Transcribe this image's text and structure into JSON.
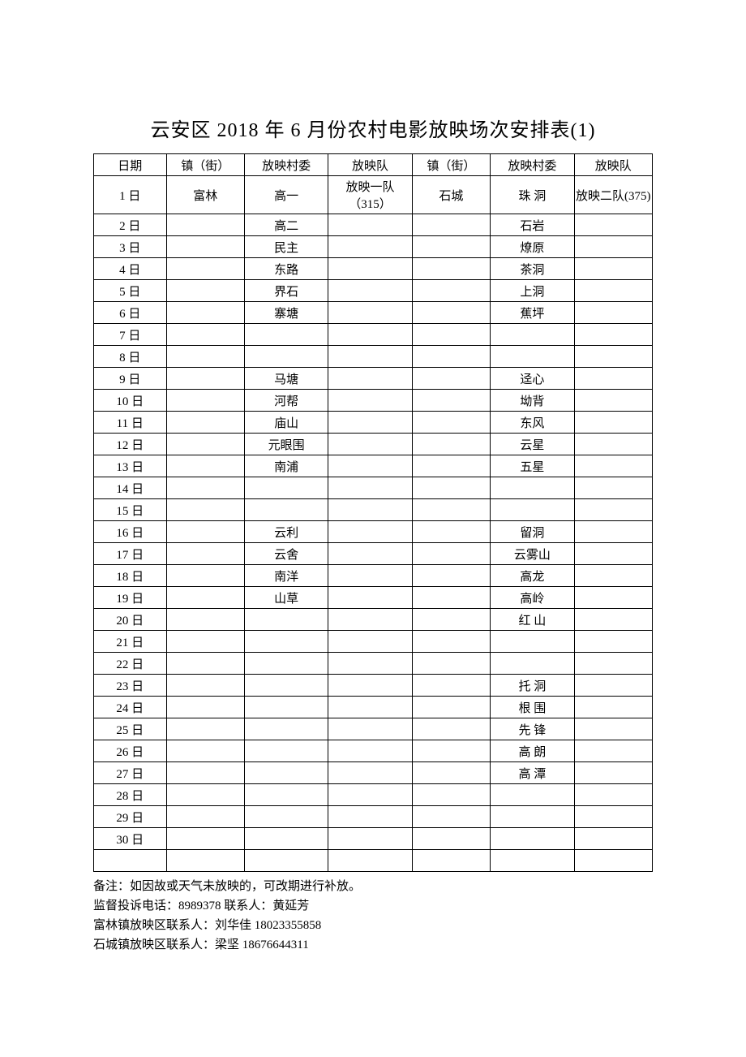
{
  "title": "云安区  2018 年 6 月份农村电影放映场次安排表(1)",
  "table": {
    "columns": [
      "日期",
      "镇（街）",
      "放映村委",
      "放映队",
      "镇（街）",
      "放映村委",
      "放映队"
    ],
    "rows": [
      [
        "1 日",
        "富林",
        "高一",
        "放映一队（315）",
        "石城",
        "珠 洞",
        "放映二队(375)"
      ],
      [
        "2 日",
        "",
        "高二",
        "",
        "",
        "石岩",
        ""
      ],
      [
        "3 日",
        "",
        "民主",
        "",
        "",
        "燎原",
        ""
      ],
      [
        "4 日",
        "",
        "东路",
        "",
        "",
        "茶洞",
        ""
      ],
      [
        "5 日",
        "",
        "界石",
        "",
        "",
        "上洞",
        ""
      ],
      [
        "6 日",
        "",
        "寨塘",
        "",
        "",
        "蕉坪",
        ""
      ],
      [
        "7 日",
        "",
        "",
        "",
        "",
        "",
        ""
      ],
      [
        "8 日",
        "",
        "",
        "",
        "",
        "",
        ""
      ],
      [
        "9 日",
        "",
        "马塘",
        "",
        "",
        "迳心",
        ""
      ],
      [
        "10 日",
        "",
        "河帮",
        "",
        "",
        "坳背",
        ""
      ],
      [
        "11 日",
        "",
        "庙山",
        "",
        "",
        "东风",
        ""
      ],
      [
        "12 日",
        "",
        "元眼围",
        "",
        "",
        "云星",
        ""
      ],
      [
        "13 日",
        "",
        "南浦",
        "",
        "",
        "五星",
        ""
      ],
      [
        "14 日",
        "",
        "",
        "",
        "",
        "",
        ""
      ],
      [
        "15 日",
        "",
        "",
        "",
        "",
        "",
        ""
      ],
      [
        "16 日",
        "",
        "云利",
        "",
        "",
        "留洞",
        ""
      ],
      [
        "17 日",
        "",
        "云舍",
        "",
        "",
        "云雾山",
        ""
      ],
      [
        "18 日",
        "",
        "南洋",
        "",
        "",
        "高龙",
        ""
      ],
      [
        "19 日",
        "",
        "山草",
        "",
        "",
        "高岭",
        ""
      ],
      [
        "20 日",
        "",
        "",
        "",
        "",
        "红 山",
        ""
      ],
      [
        "21 日",
        "",
        "",
        "",
        "",
        "",
        ""
      ],
      [
        "22 日",
        "",
        "",
        "",
        "",
        "",
        ""
      ],
      [
        "23 日",
        "",
        "",
        "",
        "",
        "托 洞",
        ""
      ],
      [
        "24 日",
        "",
        "",
        "",
        "",
        "根 围",
        ""
      ],
      [
        "25 日",
        "",
        "",
        "",
        "",
        "先 锋",
        ""
      ],
      [
        "26 日",
        "",
        "",
        "",
        "",
        "高 朗",
        ""
      ],
      [
        "27 日",
        "",
        "",
        "",
        "",
        "高 潭",
        ""
      ],
      [
        "28 日",
        "",
        "",
        "",
        "",
        "",
        ""
      ],
      [
        "29 日",
        "",
        "",
        "",
        "",
        "",
        ""
      ],
      [
        "30 日",
        "",
        "",
        "",
        "",
        "",
        ""
      ],
      [
        "",
        "",
        "",
        "",
        "",
        "",
        ""
      ]
    ]
  },
  "notes": [
    "备注：如因故或天气未放映的，可改期进行补放。",
    "监督投诉电话：8989378 联系人：黄延芳",
    "富林镇放映区联系人：刘华佳 18023355858",
    "石城镇放映区联系人：梁坚  18676644311"
  ]
}
